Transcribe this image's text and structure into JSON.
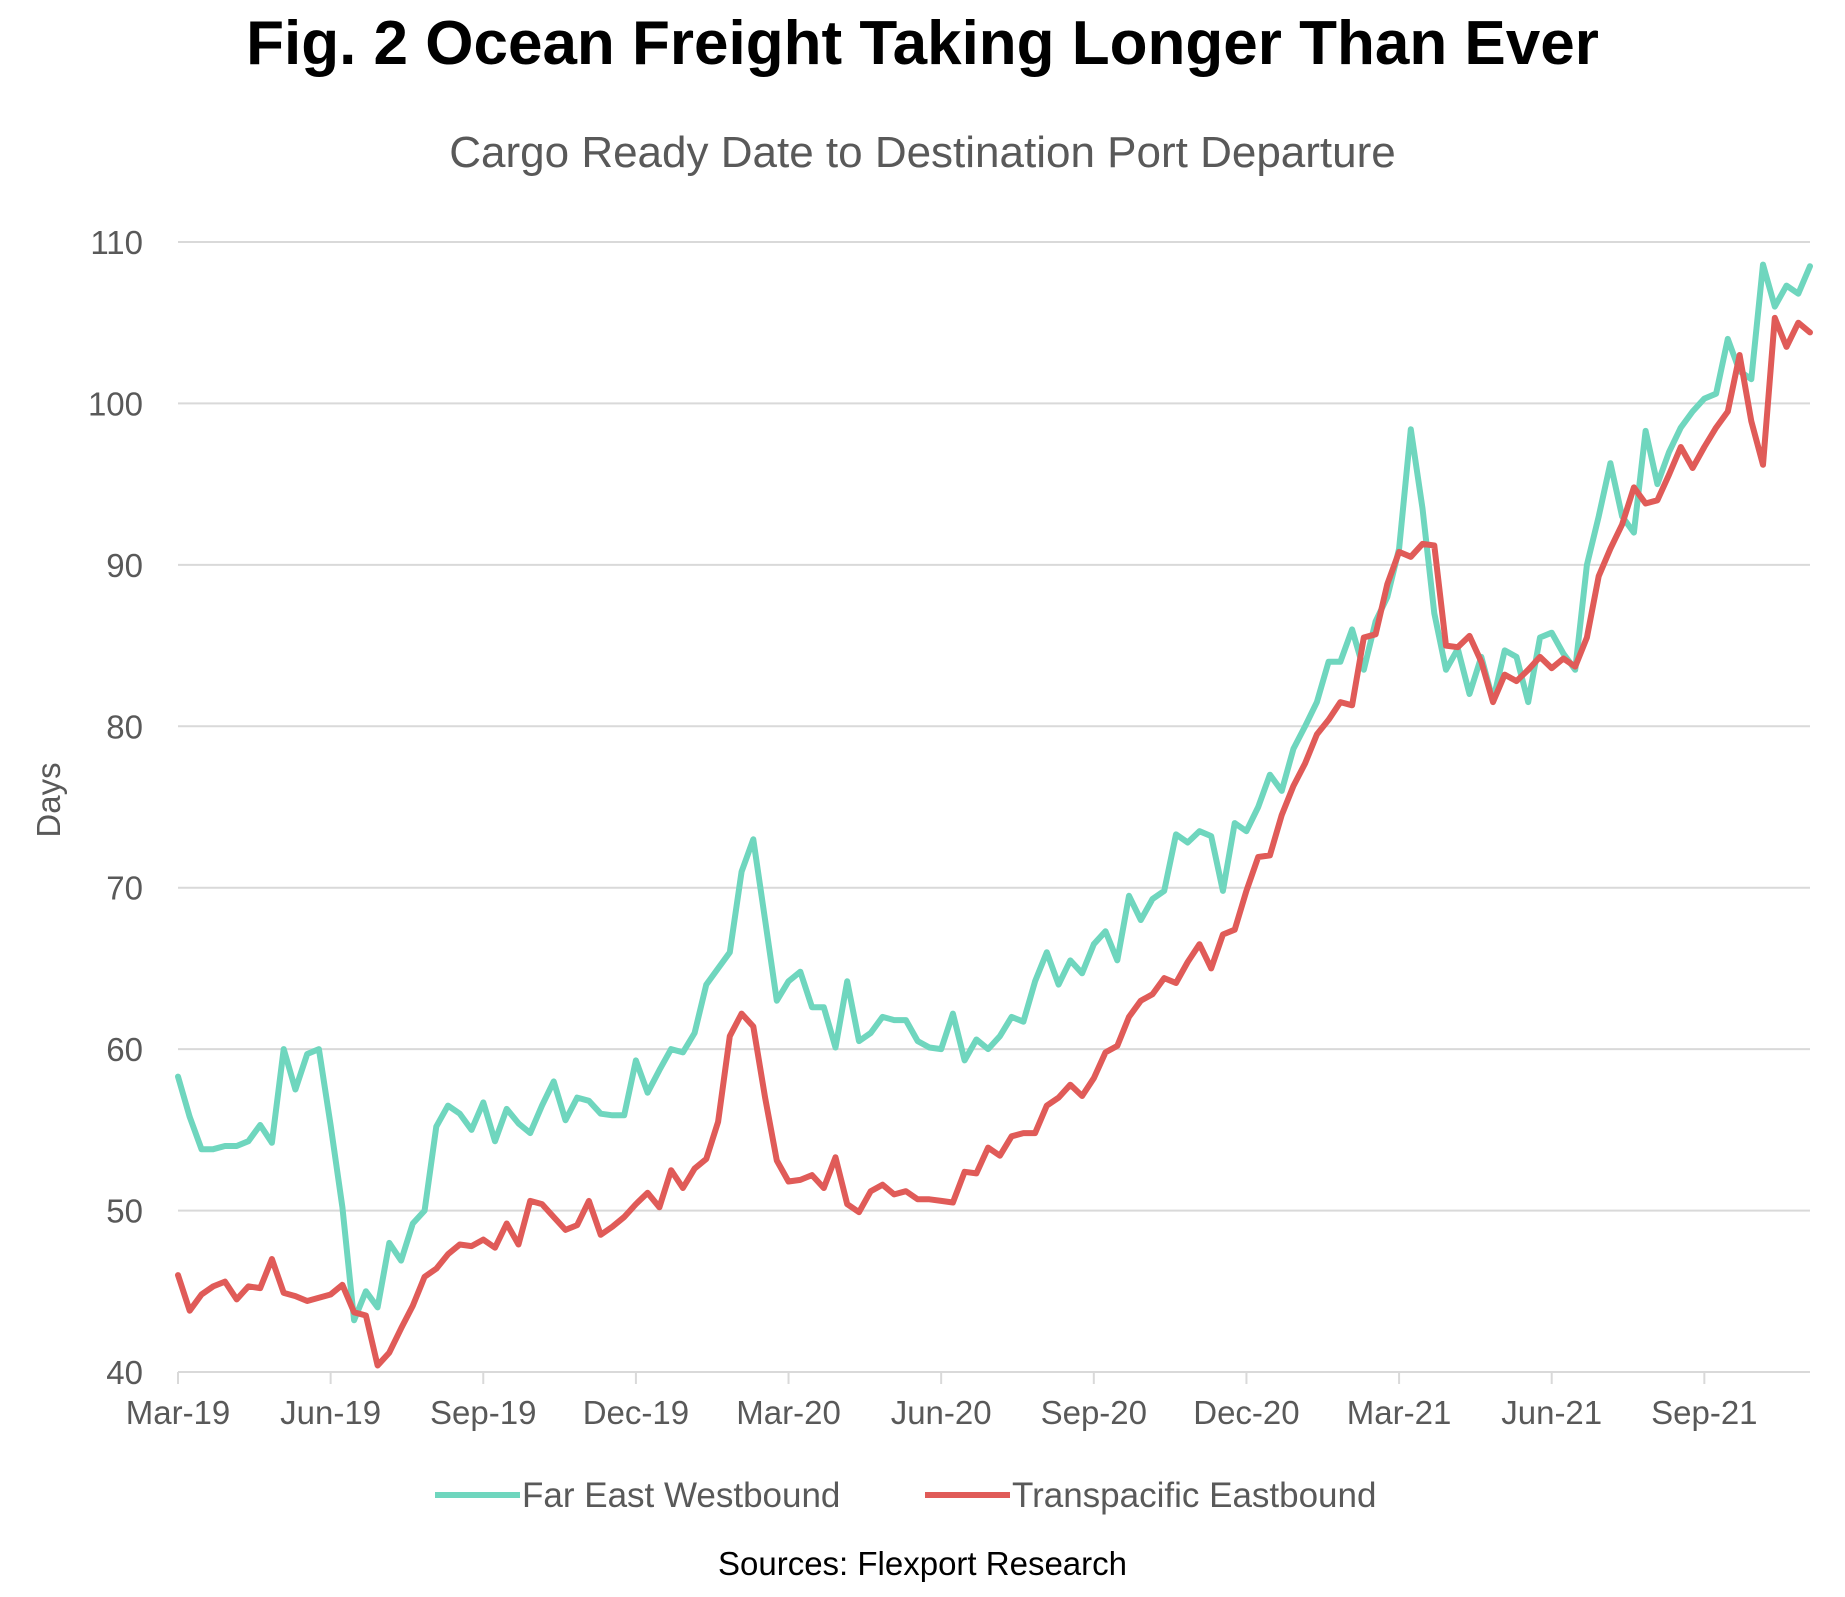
{
  "chart_data": {
    "type": "line",
    "title": "Fig. 2 Ocean Freight Taking Longer Than Ever",
    "subtitle": "Cargo Ready Date to Destination Port Departure",
    "xlabel": "",
    "ylabel": "Days",
    "ylim": [
      40,
      110
    ],
    "yticks": [
      "40",
      "50",
      "60",
      "70",
      "80",
      "90",
      "100",
      "110"
    ],
    "xticks": [
      "Mar-19",
      "Jun-19",
      "Sep-19",
      "Dec-19",
      "Mar-20",
      "Jun-20",
      "Sep-20",
      "Dec-20",
      "Mar-21",
      "Jun-21",
      "Sep-21"
    ],
    "x_points_per_tick": 13,
    "grid": true,
    "legend_position": "bottom",
    "series": [
      {
        "name": "Far East Westbound",
        "color": "#6fd6be",
        "values": [
          58.3,
          55.8,
          53.8,
          53.8,
          54.0,
          54.0,
          54.3,
          55.3,
          54.2,
          60.0,
          57.5,
          59.7,
          60.0,
          55.3,
          50.2,
          43.2,
          45.0,
          44.0,
          48.0,
          46.9,
          49.2,
          50.0,
          55.2,
          56.5,
          56.0,
          55.0,
          56.7,
          54.3,
          56.3,
          55.4,
          54.8,
          56.5,
          58.0,
          55.6,
          57.0,
          56.8,
          56.0,
          55.9,
          55.9,
          59.3,
          57.3,
          58.7,
          60.0,
          59.8,
          61.0,
          64.0,
          65.0,
          66.0,
          71.0,
          73.0,
          68.0,
          63.0,
          64.2,
          64.8,
          62.6,
          62.6,
          60.1,
          64.2,
          60.5,
          61.0,
          62.0,
          61.8,
          61.8,
          60.5,
          60.1,
          60.0,
          62.2,
          59.3,
          60.6,
          60.0,
          60.8,
          62.0,
          61.7,
          64.2,
          66.0,
          64.0,
          65.5,
          64.7,
          66.5,
          67.3,
          65.5,
          69.5,
          68.0,
          69.3,
          69.8,
          73.3,
          72.8,
          73.5,
          73.2,
          69.8,
          74.0,
          73.5,
          75.0,
          77.0,
          76.0,
          78.6,
          80.0,
          81.5,
          84.0,
          84.0,
          86.0,
          83.5,
          86.5,
          88.0,
          91.0,
          98.4,
          93.5,
          87.0,
          83.5,
          84.8,
          82.0,
          84.3,
          81.6,
          84.7,
          84.3,
          81.5,
          85.5,
          85.8,
          84.5,
          83.5,
          90.0,
          93.0,
          96.3,
          93.0,
          92.0,
          98.3,
          95.0,
          97.0,
          98.5,
          99.5,
          100.3,
          100.6,
          104.0,
          102.0,
          101.5,
          108.6,
          106.0,
          107.3,
          106.8,
          108.5
        ]
      },
      {
        "name": "Transpacific Eastbound",
        "color": "#e05b58",
        "values": [
          46.0,
          43.8,
          44.8,
          45.3,
          45.6,
          44.5,
          45.3,
          45.2,
          47.0,
          44.9,
          44.7,
          44.4,
          44.6,
          44.8,
          45.4,
          43.7,
          43.5,
          40.4,
          41.2,
          42.7,
          44.1,
          45.9,
          46.4,
          47.3,
          47.9,
          47.8,
          48.2,
          47.7,
          49.2,
          47.9,
          50.6,
          50.4,
          49.6,
          48.8,
          49.1,
          50.6,
          48.5,
          49.0,
          49.6,
          50.4,
          51.1,
          50.2,
          52.5,
          51.4,
          52.6,
          53.2,
          55.5,
          60.8,
          62.2,
          61.4,
          57.0,
          53.1,
          51.8,
          51.9,
          52.2,
          51.4,
          53.3,
          50.4,
          49.9,
          51.2,
          51.6,
          51.0,
          51.2,
          50.7,
          50.7,
          50.6,
          50.5,
          52.4,
          52.3,
          53.9,
          53.4,
          54.6,
          54.8,
          54.8,
          56.5,
          57.0,
          57.8,
          57.1,
          58.2,
          59.8,
          60.2,
          62.0,
          63.0,
          63.4,
          64.4,
          64.1,
          65.4,
          66.5,
          65.0,
          67.1,
          67.4,
          69.8,
          71.9,
          72.0,
          74.5,
          76.3,
          77.7,
          79.5,
          80.4,
          81.5,
          81.3,
          85.5,
          85.7,
          88.8,
          90.8,
          90.5,
          91.3,
          91.2,
          85.0,
          84.9,
          85.6,
          84.0,
          81.5,
          83.2,
          82.8,
          83.5,
          84.3,
          83.6,
          84.2,
          83.7,
          85.5,
          89.3,
          91.0,
          92.5,
          94.8,
          93.8,
          94.0,
          95.6,
          97.3,
          96.0,
          97.3,
          98.5,
          99.5,
          103.0,
          98.9,
          96.2,
          105.3,
          103.5,
          105.0,
          104.4
        ]
      }
    ],
    "source": "Sources: Flexport Research"
  }
}
